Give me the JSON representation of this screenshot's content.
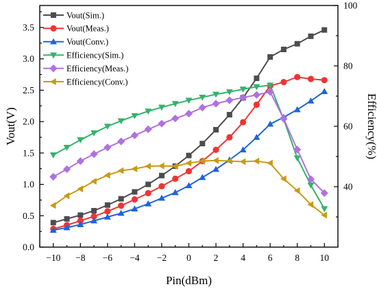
{
  "chart_data": {
    "type": "line",
    "title": "",
    "xlabel": "Pin(dBm)",
    "ylabel": "Vout(V)",
    "y2label": "Efficiency(%)",
    "xlim": [
      -11,
      11
    ],
    "ylim": [
      0.0,
      3.85
    ],
    "y2lim": [
      20,
      100
    ],
    "x_ticks": [
      -10,
      -8,
      -6,
      -4,
      -2,
      0,
      2,
      4,
      6,
      8,
      10
    ],
    "x_tick_labels": [
      "−10",
      "−8",
      "−6",
      "−4",
      "−2",
      "0",
      "2",
      "4",
      "6",
      "8",
      "10"
    ],
    "y_ticks": [
      0.0,
      0.5,
      1.0,
      1.5,
      2.0,
      2.5,
      3.0,
      3.5
    ],
    "y_tick_labels": [
      "0.0",
      "0.5",
      "1.0",
      "1.5",
      "2.0",
      "2.5",
      "3.0",
      "3.5"
    ],
    "y2_ticks": [
      40,
      60,
      80,
      100
    ],
    "y2_tick_labels": [
      "40",
      "60",
      "80",
      "100"
    ],
    "legend_position": "top-left",
    "x": [
      -10,
      -9,
      -8,
      -7,
      -6,
      -5,
      -4,
      -3,
      -2,
      -1,
      0,
      1,
      2,
      3,
      4,
      5,
      6,
      7,
      8,
      9,
      10
    ],
    "series": [
      {
        "name": "Vout(Sim.)",
        "axis": "left",
        "color": "#4d4d4d",
        "marker": "square",
        "values": [
          0.39,
          0.45,
          0.51,
          0.58,
          0.67,
          0.77,
          0.88,
          1.0,
          1.14,
          1.29,
          1.46,
          1.65,
          1.87,
          2.11,
          2.38,
          2.69,
          3.03,
          3.15,
          3.24,
          3.36,
          3.46
        ]
      },
      {
        "name": "Vout(Meas.)",
        "axis": "left",
        "color": "#ee3535",
        "marker": "circle",
        "values": [
          0.29,
          0.35,
          0.42,
          0.49,
          0.57,
          0.66,
          0.76,
          0.86,
          0.97,
          1.09,
          1.21,
          1.37,
          1.55,
          1.75,
          1.99,
          2.27,
          2.57,
          2.63,
          2.71,
          2.68,
          2.66
        ]
      },
      {
        "name": "Vout(Conv.)",
        "axis": "left",
        "color": "#1e64dc",
        "marker": "triangle-up",
        "values": [
          0.27,
          0.31,
          0.36,
          0.42,
          0.48,
          0.54,
          0.61,
          0.69,
          0.78,
          0.87,
          0.98,
          1.11,
          1.24,
          1.39,
          1.55,
          1.75,
          1.96,
          2.07,
          2.19,
          2.33,
          2.48
        ]
      },
      {
        "name": "Efficiency(Sim.)",
        "axis": "right",
        "color": "#33b36b",
        "marker": "triangle-down",
        "values": [
          50.5,
          53.0,
          55.5,
          57.8,
          60.0,
          61.8,
          63.5,
          65.0,
          66.3,
          67.5,
          68.6,
          69.6,
          70.6,
          71.4,
          72.3,
          73.1,
          73.6,
          62.3,
          49.5,
          40.5,
          32.7
        ]
      },
      {
        "name": "Efficiency(Meas.)",
        "axis": "right",
        "color": "#b071e0",
        "marker": "diamond",
        "values": [
          43.3,
          45.8,
          48.5,
          50.8,
          53.0,
          55.0,
          57.0,
          59.0,
          60.9,
          62.6,
          64.2,
          66.2,
          67.5,
          68.6,
          69.5,
          70.4,
          71.4,
          62.5,
          52.3,
          42.5,
          37.9
        ]
      },
      {
        "name": "Efficiency(Conv.)",
        "axis": "right",
        "color": "#c89b12",
        "marker": "triangle-left",
        "values": [
          33.8,
          37.0,
          39.3,
          41.8,
          43.8,
          45.3,
          45.9,
          46.8,
          46.9,
          46.8,
          47.8,
          48.5,
          48.7,
          48.5,
          48.3,
          48.5,
          47.8,
          42.6,
          38.7,
          34.1,
          30.6
        ]
      }
    ]
  }
}
